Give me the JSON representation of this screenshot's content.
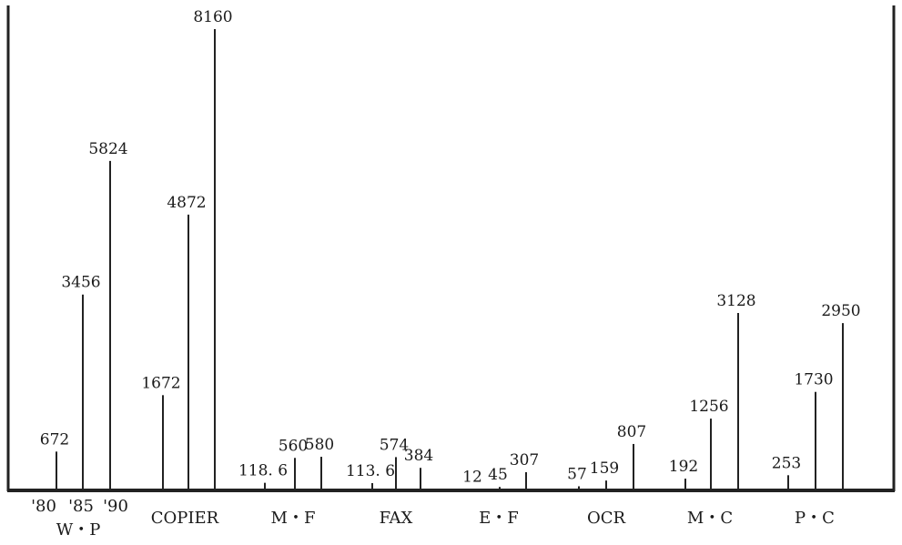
{
  "chart_data": {
    "type": "bar",
    "title": "",
    "xlabel": "",
    "ylabel": "",
    "years": [
      "'80",
      "'85",
      "'90"
    ],
    "groups": [
      {
        "label": "W・P",
        "values": [
          672,
          3456,
          5824
        ],
        "value_labels": [
          "672",
          "3456",
          "5824"
        ]
      },
      {
        "label": "COPIER",
        "values": [
          1672,
          4872,
          8160
        ],
        "value_labels": [
          "1672",
          "4872",
          "8160"
        ]
      },
      {
        "label": "M・F",
        "values": [
          118.6,
          560,
          580
        ],
        "value_labels": [
          "118. 6",
          "560",
          "580"
        ]
      },
      {
        "label": "FAX",
        "values": [
          113.6,
          574,
          384
        ],
        "value_labels": [
          "113. 6",
          "574",
          "384"
        ]
      },
      {
        "label": "E・F",
        "values": [
          12,
          45,
          307
        ],
        "value_labels": [
          "12",
          "45",
          "307"
        ]
      },
      {
        "label": "OCR",
        "values": [
          57,
          159,
          807
        ],
        "value_labels": [
          "57",
          "159",
          "807"
        ]
      },
      {
        "label": "M・C",
        "values": [
          192,
          1256,
          3128
        ],
        "value_labels": [
          "192",
          "1256",
          "3128"
        ]
      },
      {
        "label": "P・C",
        "values": [
          253,
          1730,
          2950
        ],
        "value_labels": [
          "253",
          "1730",
          "2950"
        ]
      }
    ],
    "grid": false,
    "legend": "none"
  }
}
